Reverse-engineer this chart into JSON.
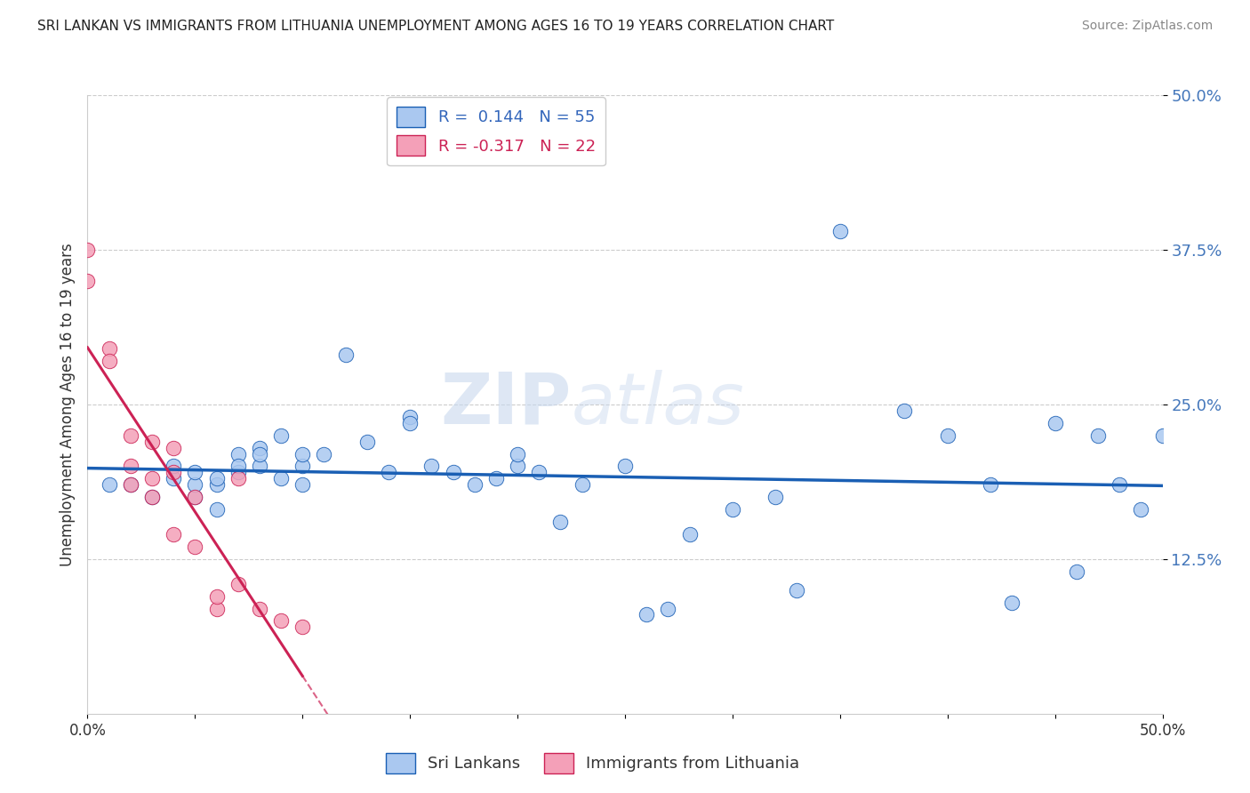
{
  "title": "SRI LANKAN VS IMMIGRANTS FROM LITHUANIA UNEMPLOYMENT AMONG AGES 16 TO 19 YEARS CORRELATION CHART",
  "source": "Source: ZipAtlas.com",
  "xlabel_blue": "Sri Lankans",
  "xlabel_pink": "Immigrants from Lithuania",
  "ylabel": "Unemployment Among Ages 16 to 19 years",
  "r_blue": 0.144,
  "n_blue": 55,
  "r_pink": -0.317,
  "n_pink": 22,
  "x_min": 0.0,
  "x_max": 0.5,
  "y_min": 0.0,
  "y_max": 0.5,
  "yticks": [
    0.125,
    0.25,
    0.375,
    0.5
  ],
  "ytick_labels": [
    "12.5%",
    "25.0%",
    "37.5%",
    "50.0%"
  ],
  "watermark_zip": "ZIP",
  "watermark_atlas": "atlas",
  "color_blue": "#aac8f0",
  "color_pink": "#f4a0b8",
  "line_blue": "#1a5fb4",
  "line_pink": "#cc2255",
  "background": "#ffffff",
  "grid_color": "#cccccc",
  "blue_x": [
    0.01,
    0.02,
    0.03,
    0.04,
    0.04,
    0.05,
    0.05,
    0.05,
    0.06,
    0.06,
    0.06,
    0.07,
    0.07,
    0.07,
    0.08,
    0.08,
    0.08,
    0.09,
    0.09,
    0.1,
    0.1,
    0.1,
    0.11,
    0.12,
    0.13,
    0.14,
    0.15,
    0.15,
    0.16,
    0.17,
    0.18,
    0.19,
    0.2,
    0.2,
    0.21,
    0.22,
    0.23,
    0.25,
    0.26,
    0.27,
    0.28,
    0.3,
    0.32,
    0.33,
    0.35,
    0.38,
    0.4,
    0.42,
    0.43,
    0.45,
    0.46,
    0.47,
    0.48,
    0.49,
    0.5
  ],
  "blue_y": [
    0.185,
    0.185,
    0.175,
    0.19,
    0.2,
    0.175,
    0.185,
    0.195,
    0.165,
    0.185,
    0.19,
    0.195,
    0.21,
    0.2,
    0.215,
    0.2,
    0.21,
    0.19,
    0.225,
    0.185,
    0.2,
    0.21,
    0.21,
    0.29,
    0.22,
    0.195,
    0.24,
    0.235,
    0.2,
    0.195,
    0.185,
    0.19,
    0.2,
    0.21,
    0.195,
    0.155,
    0.185,
    0.2,
    0.08,
    0.085,
    0.145,
    0.165,
    0.175,
    0.1,
    0.39,
    0.245,
    0.225,
    0.185,
    0.09,
    0.235,
    0.115,
    0.225,
    0.185,
    0.165,
    0.225
  ],
  "pink_x": [
    0.0,
    0.0,
    0.01,
    0.01,
    0.02,
    0.02,
    0.02,
    0.03,
    0.03,
    0.03,
    0.04,
    0.04,
    0.04,
    0.05,
    0.05,
    0.06,
    0.06,
    0.07,
    0.07,
    0.08,
    0.09,
    0.1
  ],
  "pink_y": [
    0.35,
    0.375,
    0.295,
    0.285,
    0.225,
    0.2,
    0.185,
    0.22,
    0.19,
    0.175,
    0.215,
    0.195,
    0.145,
    0.175,
    0.135,
    0.085,
    0.095,
    0.105,
    0.19,
    0.085,
    0.075,
    0.07
  ]
}
